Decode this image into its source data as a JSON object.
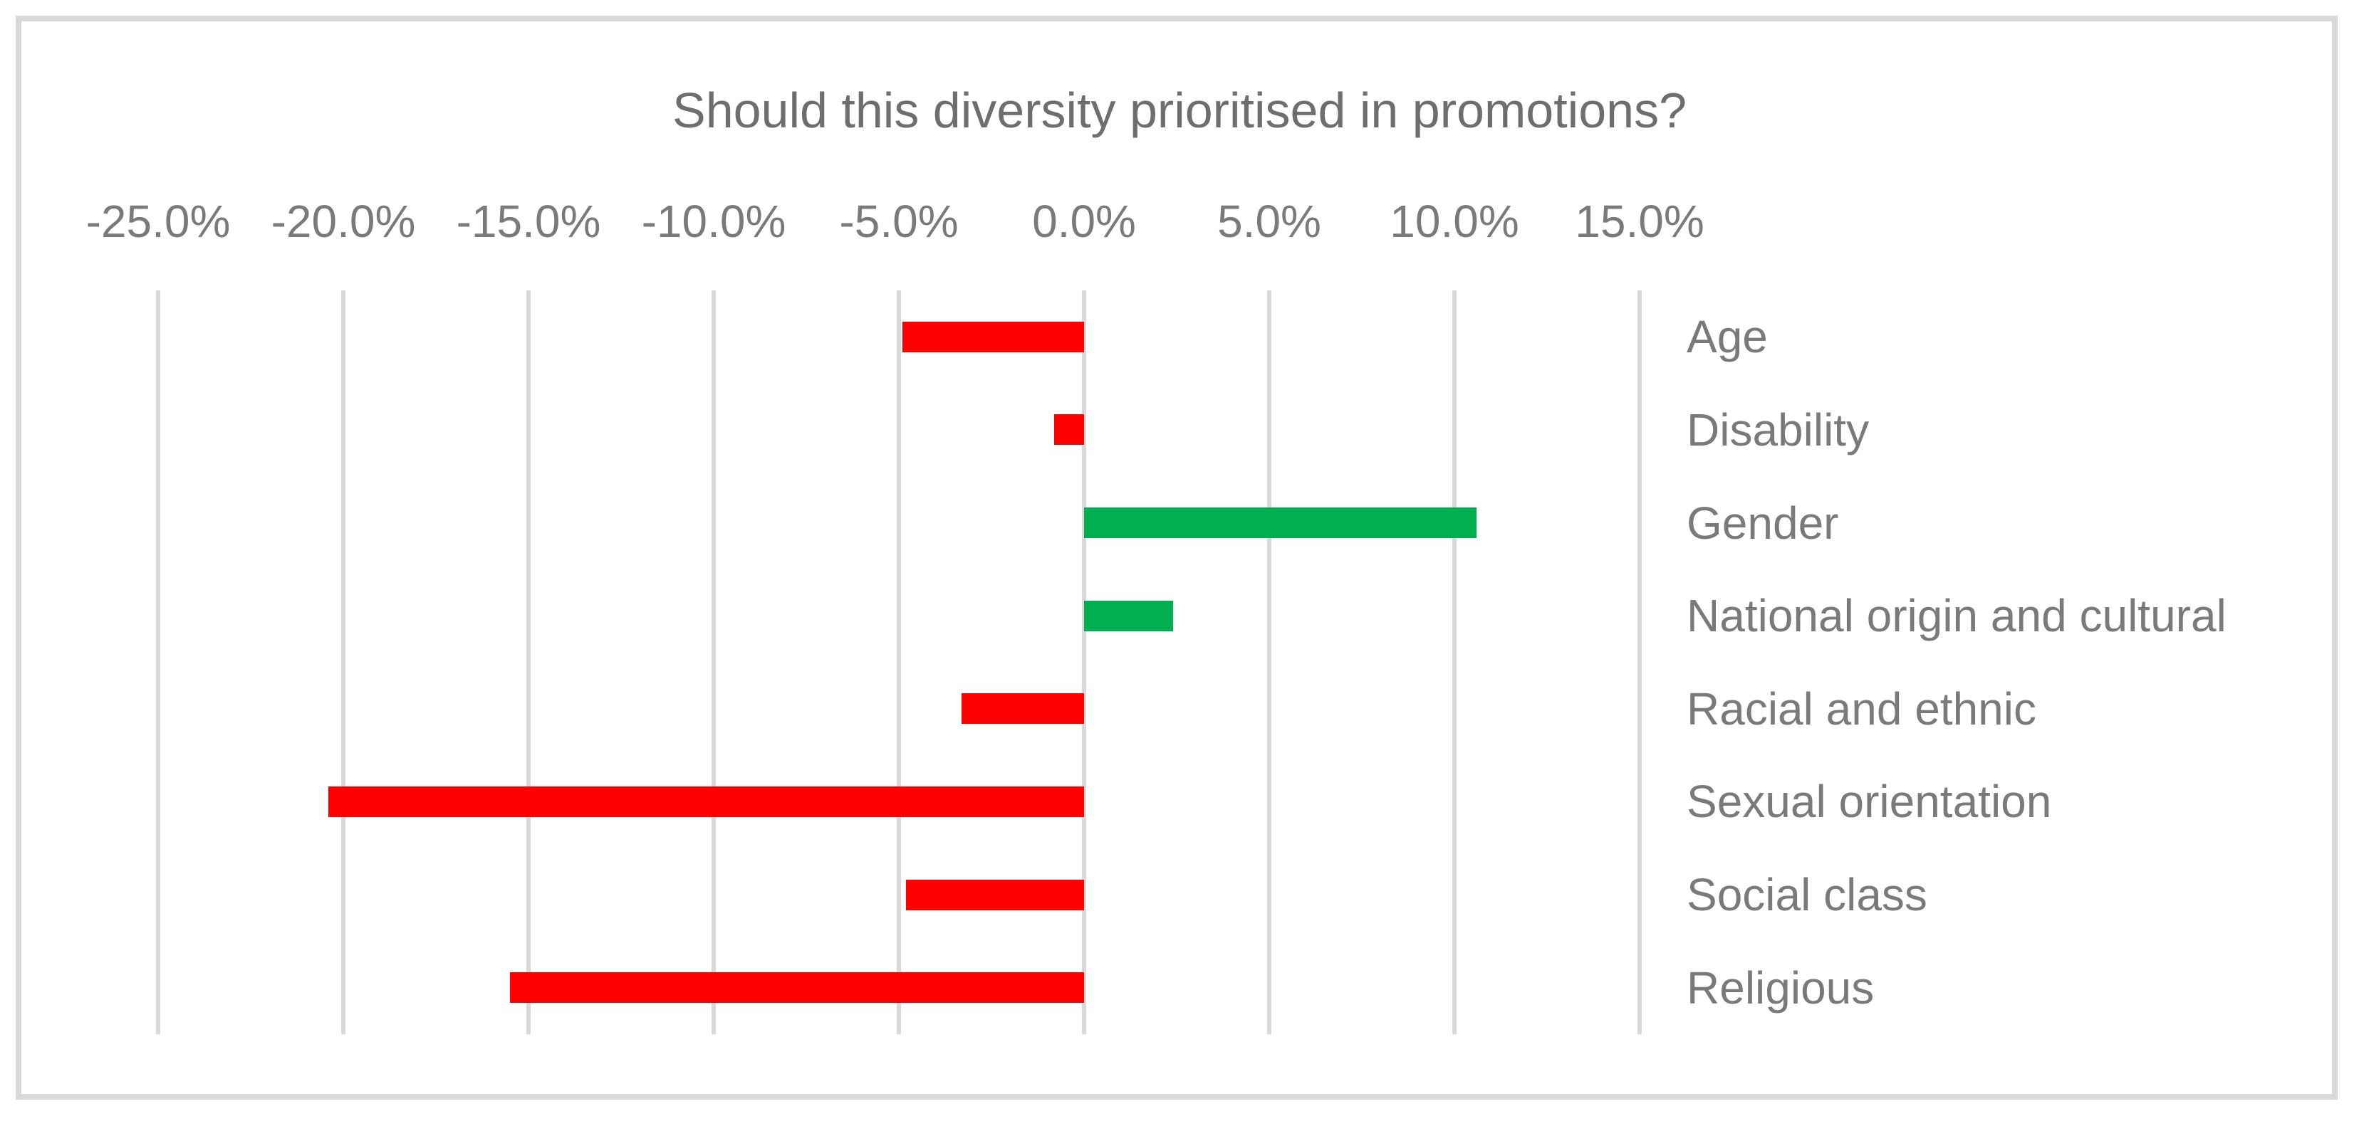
{
  "chart_data": {
    "type": "bar",
    "orientation": "horizontal",
    "title": "Should this diversity prioritised in promotions?",
    "categories": [
      "Age",
      "Disability",
      "Gender",
      "National origin and cultural",
      "Racial and ethnic",
      "Sexual orientation",
      "Social class",
      "Religious"
    ],
    "values": [
      -4.9,
      -0.8,
      10.6,
      2.4,
      -3.3,
      -20.4,
      -4.8,
      -15.5
    ],
    "unit": "%",
    "xlim": [
      -25,
      15
    ],
    "x_tick_values": [
      -25,
      -20,
      -15,
      -10,
      -5,
      0,
      5,
      10,
      15
    ],
    "x_tick_labels": [
      "-25.0%",
      "-20.0%",
      "-15.0%",
      "-10.0%",
      "-5.0%",
      "0.0%",
      "5.0%",
      "10.0%",
      "15.0%"
    ],
    "grid": "vertical-gridlines-on",
    "legend": "none",
    "category_axis_side": "right",
    "colors": {
      "negative_bar": "#FF0000",
      "positive_bar": "#00B050",
      "gridline": "#D9D9D9",
      "frame_border": "#D9D9D9",
      "title_text": "#6E6E6E",
      "axis_text": "#7A7A7A",
      "background": "#FFFFFF"
    }
  }
}
